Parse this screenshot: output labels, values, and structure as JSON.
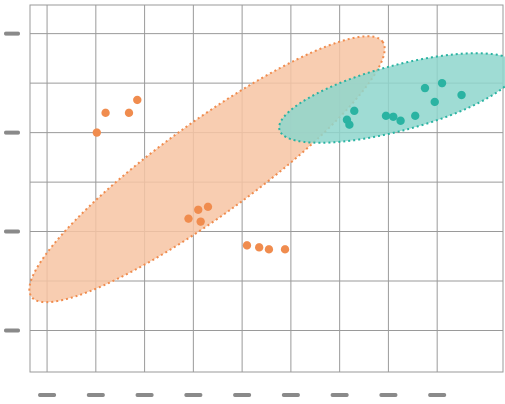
{
  "chart_data": {
    "type": "scatter",
    "title": "",
    "xlabel": "",
    "ylabel": "",
    "xlim": [
      -0.35,
      9.35
    ],
    "ylim": [
      0.08,
      3.79
    ],
    "grid": true,
    "x_ticks": [
      0,
      1,
      2,
      3,
      4,
      5,
      6,
      7,
      8
    ],
    "y_ticks": [
      0.5,
      1.5,
      2.5,
      3.5
    ],
    "tick_labels_visible": false,
    "series": [
      {
        "color": "#f08c4e",
        "fill": "#f7c4a3",
        "points": [
          [
            1.02,
            2.5
          ],
          [
            1.2,
            2.7
          ],
          [
            1.68,
            2.7
          ],
          [
            1.85,
            2.83
          ],
          [
            2.9,
            1.63
          ],
          [
            3.1,
            1.72
          ],
          [
            3.15,
            1.6
          ],
          [
            3.3,
            1.75
          ],
          [
            4.1,
            1.36
          ],
          [
            4.35,
            1.34
          ],
          [
            4.55,
            1.32
          ],
          [
            4.88,
            1.32
          ]
        ],
        "ellipse": {
          "cx": 3.28,
          "cy": 2.13,
          "rx": 4.45,
          "ry": 0.47,
          "angle_deg": -36
        }
      },
      {
        "color": "#2ab3a2",
        "fill": "#8ed6cc",
        "points": [
          [
            6.15,
            2.63
          ],
          [
            6.2,
            2.58
          ],
          [
            6.3,
            2.72
          ],
          [
            6.95,
            2.67
          ],
          [
            7.1,
            2.66
          ],
          [
            7.25,
            2.62
          ],
          [
            7.55,
            2.67
          ],
          [
            7.75,
            2.95
          ],
          [
            7.95,
            2.81
          ],
          [
            8.1,
            3.0
          ],
          [
            8.5,
            2.88
          ]
        ],
        "ellipse": {
          "cx": 7.2,
          "cy": 2.85,
          "rx": 2.52,
          "ry": 0.33,
          "angle_deg": -15
        }
      }
    ]
  }
}
